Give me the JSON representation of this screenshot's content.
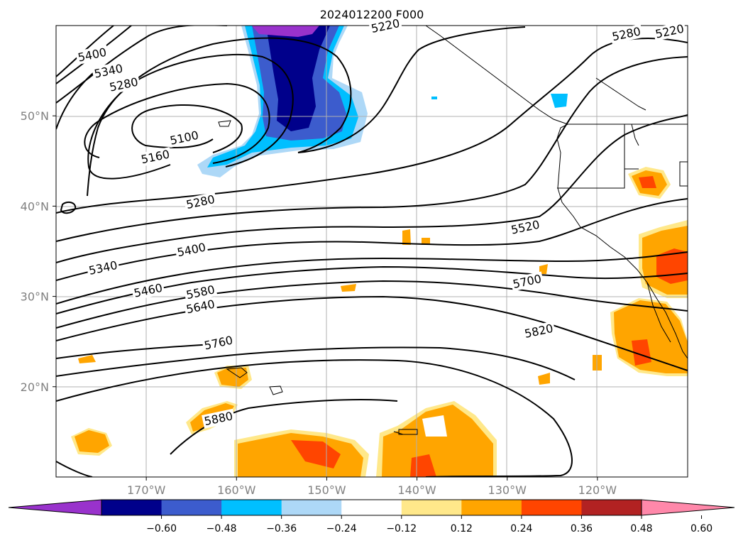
{
  "chart_data": {
    "type": "map-contour",
    "title": "2024012200 F000",
    "projection": "PlateCarree",
    "lon_range": [
      -180,
      -110
    ],
    "lat_range": [
      10,
      60
    ],
    "lat_ticks": [
      {
        "value": 20,
        "label": "20°N"
      },
      {
        "value": 30,
        "label": "30°N"
      },
      {
        "value": 40,
        "label": "40°N"
      },
      {
        "value": 50,
        "label": "50°N"
      }
    ],
    "lon_ticks": [
      {
        "value": -170,
        "label": "170°W"
      },
      {
        "value": -160,
        "label": "160°W"
      },
      {
        "value": -150,
        "label": "150°W"
      },
      {
        "value": -140,
        "label": "140°W"
      },
      {
        "value": -130,
        "label": "130°W"
      },
      {
        "value": -120,
        "label": "120°W"
      }
    ],
    "grid": true,
    "contour_labels": [
      {
        "text": "5400",
        "lon": -176.0,
        "lat": 56.8
      },
      {
        "text": "5340",
        "lon": -174.2,
        "lat": 55.0
      },
      {
        "text": "5280",
        "lon": -172.5,
        "lat": 53.5
      },
      {
        "text": "5100",
        "lon": -165.8,
        "lat": 47.6
      },
      {
        "text": "5160",
        "lon": -169.0,
        "lat": 45.5
      },
      {
        "text": "5280",
        "lon": -164.0,
        "lat": 40.5
      },
      {
        "text": "5220",
        "lon": -143.5,
        "lat": 60.0
      },
      {
        "text": "5280",
        "lon": -116.8,
        "lat": 59.1
      },
      {
        "text": "5220",
        "lon": -112.0,
        "lat": 59.4
      },
      {
        "text": "5340",
        "lon": -174.8,
        "lat": 33.2
      },
      {
        "text": "5400",
        "lon": -165.0,
        "lat": 35.2
      },
      {
        "text": "5460",
        "lon": -169.8,
        "lat": 30.7
      },
      {
        "text": "5580",
        "lon": -164.0,
        "lat": 30.5
      },
      {
        "text": "5640",
        "lon": -164.0,
        "lat": 28.9
      },
      {
        "text": "5760",
        "lon": -162.0,
        "lat": 24.9
      },
      {
        "text": "5880",
        "lon": -162.0,
        "lat": 16.5
      },
      {
        "text": "5520",
        "lon": -128.0,
        "lat": 37.7
      },
      {
        "text": "5700",
        "lon": -127.8,
        "lat": 31.7
      },
      {
        "text": "5820",
        "lon": -126.5,
        "lat": 26.2
      }
    ],
    "colorbar": {
      "ticks": [
        -0.6,
        -0.48,
        -0.36,
        -0.24,
        -0.12,
        0.12,
        0.24,
        0.36,
        0.48,
        0.6
      ],
      "tick_labels": [
        "−0.60",
        "−0.48",
        "−0.36",
        "−0.24",
        "−0.12",
        "0.12",
        "0.24",
        "0.36",
        "0.48",
        "0.60"
      ],
      "colors": [
        "#9932cc",
        "#00008b",
        "#3c5ccd",
        "#00bfff",
        "#add8f7",
        "#ffffff",
        "#ffe88a",
        "#ffa500",
        "#ff4500",
        "#b22222",
        "#ff88aa"
      ],
      "extend": "both"
    }
  }
}
